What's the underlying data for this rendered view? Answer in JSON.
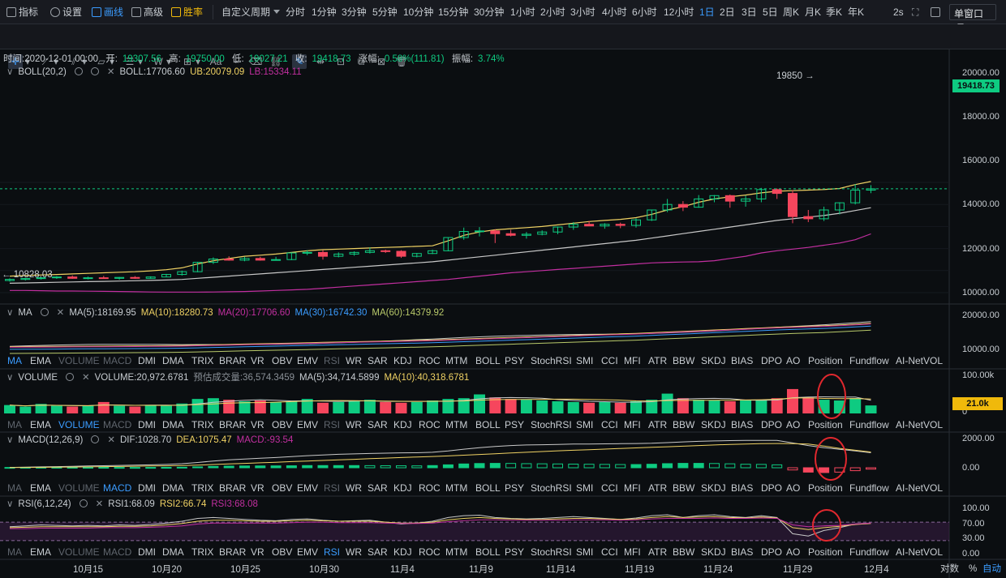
{
  "toolbar": {
    "indicators": "指标",
    "settings": "设置",
    "draw": "画线",
    "advanced": "高级",
    "win_rate": "胜率",
    "custom_period": "自定义周期",
    "periods": [
      "分时",
      "1分钟",
      "3分钟",
      "5分钟",
      "10分钟",
      "15分钟",
      "30分钟",
      "1小时",
      "2小时",
      "3小时",
      "4小时",
      "6小时",
      "12小时",
      "1日",
      "2日",
      "3日",
      "5日",
      "周K",
      "月K",
      "季K",
      "年K"
    ],
    "active_period": "1日",
    "refresh": "2s",
    "window_select": "单窗口"
  },
  "drawing_tools": {
    "text_tool": "Aa",
    "active_tool": "trend-line"
  },
  "info": {
    "time": "时间:2020-12-01 00:00",
    "open_label": "开:",
    "open": "19307.56",
    "high_label": "高:",
    "high": "19750.00",
    "low_label": "低:",
    "low": "19027.21",
    "close_label": "收:",
    "close": "19418.73",
    "change_label": "涨幅:",
    "change": "0.58%(111.81)",
    "amp_label": "振幅:",
    "amp": "3.74%"
  },
  "boll": {
    "name": "BOLL(20,2)",
    "mid": "BOLL:17706.60",
    "ub": "UB:20079.09",
    "lb": "LB:15334.11"
  },
  "ma": {
    "name": "MA",
    "ma5": "MA(5):18169.95",
    "ma10": "MA(10):18280.73",
    "ma20": "MA(20):17706.60",
    "ma30": "MA(30):16742.30",
    "ma60": "MA(60):14379.92"
  },
  "volume": {
    "name": "VOLUME",
    "value": "VOLUME:20,972.6781",
    "estimated": "预估成交量:36,574.3459",
    "ma5": "MA(5):34,714.5899",
    "ma10": "MA(10):40,318.6781",
    "tag": "21.0k"
  },
  "macd": {
    "name": "MACD(12,26,9)",
    "dif": "DIF:1028.70",
    "dea": "DEA:1075.47",
    "macd": "MACD:-93.54"
  },
  "rsi": {
    "name": "RSI(6,12,24)",
    "rsi1": "RSI1:68.09",
    "rsi2": "RSI2:66.74",
    "rsi3": "RSI3:68.08"
  },
  "indicator_tabs": [
    "MA",
    "EMA",
    "VOLUME",
    "MACD",
    "DMI",
    "DMA",
    "TRIX",
    "BRAR",
    "VR",
    "OBV",
    "EMV",
    "RSI",
    "WR",
    "SAR",
    "KDJ",
    "ROC",
    "MTM",
    "BOLL",
    "PSY",
    "StochRSI",
    "SMI",
    "CCI",
    "MFI",
    "ATR",
    "BBW",
    "SKDJ",
    "BIAS",
    "DPO",
    "AO",
    "Position",
    "Fundflow",
    "AI-NetVOL"
  ],
  "price_axis": [
    "20000.00",
    "18000.00",
    "16000.00",
    "14000.00",
    "12000.00",
    "10000.00"
  ],
  "ma_axis": [
    "20000.00",
    "10000.00"
  ],
  "vol_axis": [
    "100.00k",
    "0"
  ],
  "macd_axis": [
    "2000.00",
    "0.00"
  ],
  "rsi_axis": [
    "100.00",
    "70.00",
    "30.00",
    "0.00"
  ],
  "last_price": "19418.73",
  "max_label": "19850",
  "min_label": "10828.03",
  "dates": [
    "10月15",
    "10月20",
    "10月25",
    "10月30",
    "11月4",
    "11月9",
    "11月14",
    "11月19",
    "11月24",
    "11月29",
    "12月4"
  ],
  "bottom": {
    "log_label": "对数",
    "pct_label": "%",
    "auto_label": "自动"
  },
  "colors": {
    "up": "#0ecb81",
    "down": "#f6465d",
    "ub": "#f0d264",
    "mid": "#c8c8c8",
    "lb": "#c22fa0",
    "accent": "#3b9cff",
    "annotation": "#e0282e"
  },
  "chart_data": {
    "type": "candlestick",
    "dates_first": "2020-10-10",
    "dates_last": "2020-12-01",
    "candles": [
      [
        11100,
        11300,
        11000,
        11200
      ],
      [
        11200,
        11350,
        11100,
        11280
      ],
      [
        11280,
        11420,
        11180,
        11350
      ],
      [
        11350,
        11500,
        11250,
        11420
      ],
      [
        11420,
        11560,
        11250,
        11300
      ],
      [
        11300,
        11450,
        11200,
        11350
      ],
      [
        11350,
        11520,
        11250,
        11300
      ],
      [
        11300,
        11420,
        11180,
        11380
      ],
      [
        11380,
        11500,
        11250,
        11300
      ],
      [
        11300,
        11480,
        11250,
        11420
      ],
      [
        11420,
        11700,
        11400,
        11650
      ],
      [
        11650,
        12000,
        11550,
        11900
      ],
      [
        11900,
        12800,
        11850,
        12750
      ],
      [
        12750,
        13200,
        12600,
        13050
      ],
      [
        13050,
        13300,
        12900,
        12950
      ],
      [
        12950,
        13250,
        12850,
        13100
      ],
      [
        13100,
        13250,
        12900,
        12950
      ],
      [
        12950,
        13250,
        12900,
        13000
      ],
      [
        13000,
        13650,
        12950,
        13600
      ],
      [
        13600,
        13850,
        13400,
        13650
      ],
      [
        13650,
        13850,
        13000,
        13300
      ],
      [
        13300,
        13650,
        13200,
        13500
      ],
      [
        13500,
        13750,
        13350,
        13650
      ],
      [
        13650,
        14100,
        13550,
        13800
      ],
      [
        13800,
        13900,
        13600,
        13750
      ],
      [
        13750,
        13850,
        13150,
        13300
      ],
      [
        13300,
        13600,
        13200,
        13550
      ],
      [
        13550,
        13900,
        13500,
        13800
      ],
      [
        13800,
        15000,
        13750,
        15000
      ],
      [
        15000,
        15900,
        14800,
        15550
      ],
      [
        15550,
        15950,
        15100,
        15600
      ],
      [
        15600,
        15750,
        14500,
        15350
      ],
      [
        15350,
        15700,
        15100,
        15200
      ],
      [
        15200,
        15500,
        14900,
        15300
      ],
      [
        15300,
        15650,
        15200,
        15500
      ],
      [
        15500,
        16000,
        15300,
        15950
      ],
      [
        15950,
        16400,
        15700,
        16200
      ],
      [
        16200,
        16500,
        16100,
        16050
      ],
      [
        16050,
        16300,
        15800,
        16200
      ],
      [
        16200,
        16350,
        15850,
        16100
      ],
      [
        16100,
        16750,
        15900,
        16600
      ],
      [
        16600,
        17500,
        16500,
        17500
      ],
      [
        17500,
        18500,
        17300,
        18000
      ],
      [
        18000,
        18300,
        17400,
        17750
      ],
      [
        17750,
        18850,
        17700,
        18500
      ],
      [
        18500,
        18850,
        18200,
        18800
      ],
      [
        18800,
        18900,
        17700,
        18300
      ],
      [
        18300,
        18800,
        17800,
        18500
      ],
      [
        18500,
        19500,
        18200,
        19350
      ],
      [
        19350,
        19450,
        18500,
        19000
      ],
      [
        19000,
        19300,
        16300,
        16900
      ],
      [
        16900,
        17500,
        16400,
        16700
      ],
      [
        16700,
        17800,
        16500,
        17500
      ],
      [
        17500,
        18200,
        17100,
        18150
      ],
      [
        18150,
        19850,
        18000,
        19300
      ],
      [
        19300,
        19750,
        19027,
        19418
      ]
    ],
    "boll_ub": [
      11500,
      11550,
      11600,
      11650,
      11700,
      11750,
      11800,
      11850,
      11900,
      11980,
      12080,
      12250,
      12600,
      12900,
      13100,
      13300,
      13400,
      13500,
      13650,
      13800,
      13900,
      13950,
      14000,
      14050,
      14100,
      14150,
      14200,
      14250,
      14700,
      15200,
      15500,
      15700,
      15800,
      15900,
      16000,
      16150,
      16300,
      16450,
      16550,
      16650,
      16800,
      17100,
      17500,
      17800,
      18200,
      18500,
      18700,
      18850,
      19050,
      19200,
      19250,
      19300,
      19350,
      19450,
      19800,
      20079
    ],
    "boll_mid": [
      10850,
      10880,
      10910,
      10940,
      10970,
      11000,
      11020,
      11050,
      11080,
      11110,
      11150,
      11200,
      11300,
      11400,
      11500,
      11600,
      11700,
      11800,
      11900,
      12000,
      12100,
      12200,
      12300,
      12400,
      12500,
      12600,
      12700,
      12800,
      12950,
      13100,
      13250,
      13400,
      13550,
      13700,
      13850,
      14000,
      14150,
      14300,
      14450,
      14600,
      14750,
      14950,
      15150,
      15350,
      15550,
      15750,
      15950,
      16150,
      16350,
      16550,
      16700,
      16850,
      17000,
      17200,
      17450,
      17706
    ],
    "boll_lb": [
      10200,
      10200,
      10180,
      10150,
      10150,
      10130,
      10120,
      10100,
      10080,
      10060,
      10050,
      10050,
      10050,
      10060,
      10080,
      10100,
      10150,
      10200,
      10250,
      10300,
      10400,
      10500,
      10600,
      10700,
      10800,
      10900,
      11000,
      11100,
      11200,
      11350,
      11500,
      11650,
      11800,
      11900,
      12000,
      12100,
      12200,
      12300,
      12400,
      12500,
      12600,
      12700,
      12750,
      12780,
      12800,
      12900,
      13100,
      13300,
      13600,
      13800,
      13950,
      14100,
      14300,
      14500,
      14800,
      15334
    ],
    "volume": [
      22,
      18,
      25,
      20,
      18,
      20,
      30,
      20,
      18,
      22,
      20,
      26,
      38,
      40,
      36,
      32,
      34,
      30,
      32,
      38,
      28,
      30,
      34,
      36,
      30,
      28,
      30,
      34,
      38,
      40,
      50,
      42,
      38,
      36,
      34,
      32,
      30,
      28,
      30,
      28,
      32,
      36,
      52,
      40,
      36,
      34,
      32,
      34,
      36,
      40,
      64,
      42,
      36,
      34,
      40,
      21
    ],
    "macd_hist": [
      20,
      25,
      30,
      30,
      28,
      25,
      25,
      22,
      20,
      22,
      25,
      35,
      60,
      90,
      110,
      120,
      125,
      128,
      135,
      150,
      150,
      150,
      150,
      145,
      140,
      135,
      130,
      150,
      200,
      260,
      290,
      300,
      295,
      280,
      270,
      260,
      250,
      240,
      230,
      220,
      220,
      240,
      280,
      300,
      300,
      290,
      270,
      240,
      230,
      200,
      -150,
      -300,
      -330,
      -300,
      -200,
      -94
    ],
    "dif": [
      20,
      40,
      60,
      80,
      100,
      120,
      140,
      160,
      180,
      200,
      230,
      280,
      360,
      460,
      540,
      600,
      650,
      700,
      760,
      830,
      880,
      920,
      950,
      980,
      1000,
      1020,
      1030,
      1060,
      1150,
      1270,
      1380,
      1460,
      1520,
      1560,
      1580,
      1600,
      1620,
      1630,
      1640,
      1650,
      1660,
      1680,
      1720,
      1770,
      1810,
      1840,
      1860,
      1870,
      1880,
      1880,
      1700,
      1520,
      1380,
      1260,
      1150,
      1029
    ],
    "dea": [
      10,
      20,
      30,
      40,
      50,
      60,
      75,
      90,
      105,
      120,
      135,
      155,
      180,
      220,
      260,
      300,
      340,
      380,
      420,
      460,
      500,
      540,
      580,
      620,
      660,
      700,
      740,
      770,
      810,
      860,
      910,
      960,
      1010,
      1060,
      1110,
      1160,
      1200,
      1240,
      1280,
      1320,
      1360,
      1400,
      1440,
      1480,
      1520,
      1560,
      1600,
      1630,
      1650,
      1660,
      1650,
      1620,
      1490,
      1330,
      1200,
      1075
    ],
    "rsi1": [
      60,
      62,
      64,
      63,
      62,
      63,
      62,
      64,
      63,
      65,
      68,
      72,
      78,
      80,
      78,
      76,
      74,
      73,
      76,
      77,
      74,
      72,
      73,
      74,
      70,
      66,
      68,
      72,
      80,
      84,
      85,
      80,
      78,
      77,
      78,
      80,
      82,
      80,
      78,
      76,
      79,
      84,
      86,
      80,
      84,
      86,
      82,
      80,
      84,
      80,
      45,
      40,
      52,
      58,
      66,
      68
    ],
    "rsi2": [
      58,
      59,
      60,
      60,
      60,
      60,
      60,
      61,
      61,
      62,
      64,
      67,
      72,
      74,
      74,
      73,
      72,
      72,
      73,
      74,
      73,
      72,
      72,
      72,
      70,
      68,
      68,
      70,
      75,
      78,
      80,
      78,
      77,
      76,
      76,
      77,
      78,
      78,
      77,
      76,
      77,
      80,
      82,
      80,
      81,
      82,
      80,
      79,
      81,
      79,
      58,
      54,
      58,
      61,
      65,
      67
    ],
    "rsi3": [
      56,
      56,
      57,
      57,
      57,
      57,
      58,
      58,
      58,
      59,
      60,
      62,
      66,
      68,
      68,
      68,
      68,
      68,
      69,
      70,
      70,
      69,
      69,
      69,
      68,
      67,
      67,
      68,
      71,
      73,
      75,
      75,
      74,
      74,
      74,
      74,
      75,
      75,
      75,
      74,
      75,
      77,
      78,
      78,
      78,
      79,
      78,
      78,
      79,
      78,
      64,
      60,
      62,
      63,
      66,
      68
    ]
  }
}
